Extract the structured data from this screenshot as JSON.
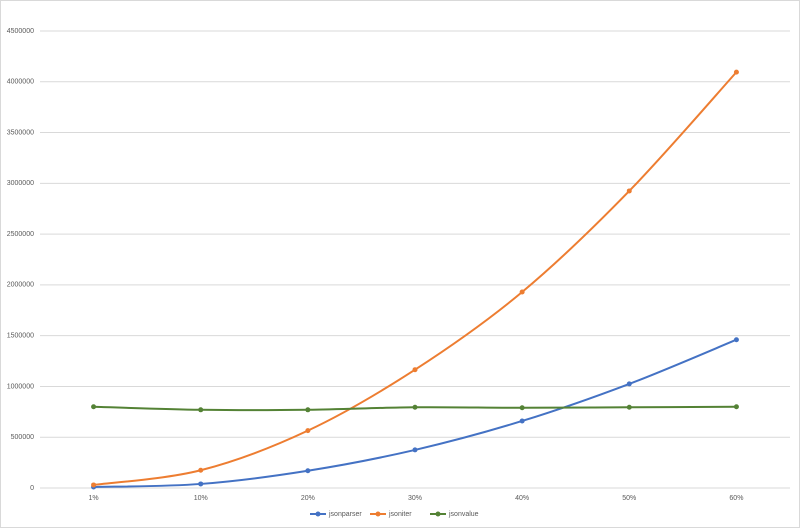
{
  "chart_data": {
    "type": "line",
    "categories": [
      "1%",
      "10%",
      "20%",
      "30%",
      "40%",
      "50%",
      "60%"
    ],
    "series": [
      {
        "name": "jsonparser",
        "color": "#4472c4",
        "values": [
          10000,
          40000,
          170000,
          375000,
          660000,
          1025000,
          1460000
        ]
      },
      {
        "name": "jsoniter",
        "color": "#ed7d31",
        "values": [
          30000,
          175000,
          565000,
          1165000,
          1930000,
          2925000,
          4095000
        ]
      },
      {
        "name": "jsonvalue",
        "color": "#548235",
        "values": [
          800000,
          770000,
          770000,
          795000,
          790000,
          795000,
          800000
        ]
      }
    ],
    "ylim": [
      0,
      4500000
    ],
    "yticks": [
      0,
      500000,
      1000000,
      1500000,
      2000000,
      2500000,
      3000000,
      3500000,
      4000000,
      4500000
    ],
    "grid": true,
    "smooth": true,
    "legend": "bottom"
  }
}
